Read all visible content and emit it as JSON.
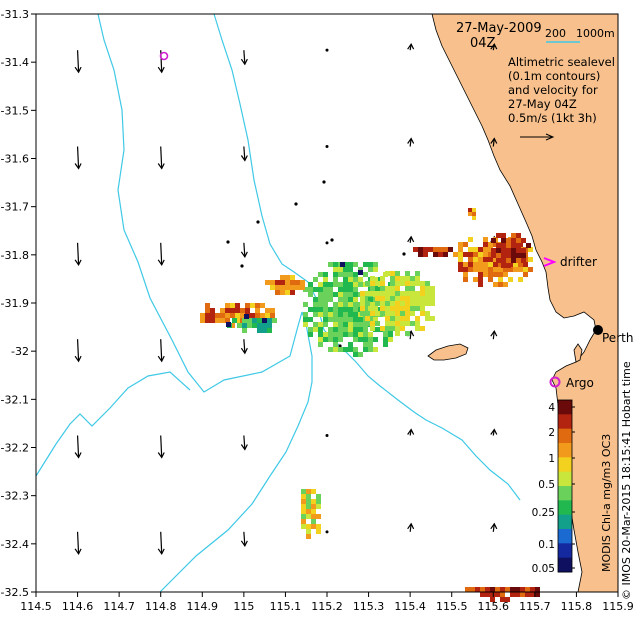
{
  "header": {
    "date": "27-May-2009",
    "time": "04Z",
    "scale_labels": [
      "200",
      "1000m"
    ]
  },
  "legend": {
    "lines": [
      "Altimetric sealevel",
      "(0.1m contours)",
      "and velocity for",
      "27-May 04Z",
      "0.5m/s (1kt 3h)"
    ]
  },
  "labels": {
    "drifter": "drifter",
    "perth": "Perth",
    "argo": "Argo"
  },
  "colorbar": {
    "title": "MODIS Chl-a mg/m3 OC3",
    "ticks": [
      "4",
      "2",
      "1",
      "0.5",
      "0.25",
      "0.1",
      "0.05"
    ],
    "colors": [
      "#6b0a0a",
      "#b32410",
      "#e06a10",
      "#f29a1c",
      "#f2d21e",
      "#c8e63c",
      "#6ad25a",
      "#22b850",
      "#12a08a",
      "#1a6ad2",
      "#1428a0",
      "#101060"
    ]
  },
  "credit": "© IMOS 20-Mar-2015 18:15:41 Hobart time",
  "map": {
    "land_color": "#f7c08c",
    "ocean_color": "#ffffff",
    "contour_color": "#3fc9e6",
    "drifter_color": "#ff00ff",
    "argo_color": "#d020d0",
    "lon_ticks": [
      "114.5",
      "114.6",
      "114.7",
      "114.8",
      "114.9",
      "115",
      "115.1",
      "115.2",
      "115.3",
      "115.4",
      "115.5",
      "115.6",
      "115.7",
      "115.8",
      "115.9"
    ],
    "lat_ticks": [
      "-31.3",
      "-31.4",
      "-31.5",
      "-31.6",
      "-31.7",
      "-31.8",
      "-31.9",
      "-32",
      "-32.1",
      "-32.2",
      "-32.3",
      "-32.4",
      "-32.5"
    ],
    "lon_range": [
      114.5,
      115.9
    ],
    "lat_range": [
      -32.5,
      -31.3
    ],
    "perth": {
      "lon": 115.86,
      "lat": -31.95
    },
    "argo": {
      "lon": 115.76,
      "lat": -32.1
    },
    "drifter": {
      "lon": 115.76,
      "lat": -31.82
    },
    "argo_offshore": {
      "lon": 114.8,
      "lat": -31.38
    }
  }
}
